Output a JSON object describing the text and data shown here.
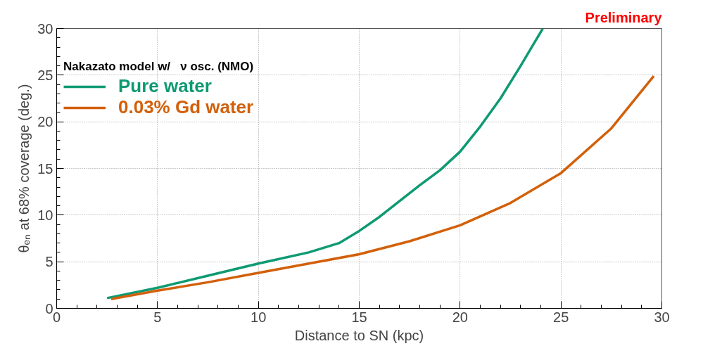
{
  "chart_data": {
    "type": "line",
    "xlabel": "Distance to SN (kpc)",
    "ylabel": "θₑₙ at 68% coverage (deg.)",
    "legend_title": "Nakazato model w/   ν osc. (NMO)",
    "annotations": [
      "Preliminary"
    ],
    "xlim": [
      0,
      30
    ],
    "ylim": [
      0,
      30
    ],
    "xticks": [
      0,
      5,
      10,
      15,
      20,
      25,
      30
    ],
    "yticks": [
      0,
      5,
      10,
      15,
      20,
      25,
      30
    ],
    "grid": true,
    "legend": "top left",
    "line_style": "solid",
    "marker": "none",
    "series": [
      {
        "name": "Pure water",
        "color": "#0e9a72",
        "x": [
          2.5,
          5,
          7.5,
          10,
          12.5,
          14,
          15,
          16,
          17,
          18,
          19,
          20,
          21,
          22,
          23,
          24.1
        ],
        "values": [
          1.1,
          2.2,
          3.5,
          4.8,
          6.0,
          7.0,
          8.3,
          9.8,
          11.5,
          13.2,
          14.8,
          16.8,
          19.5,
          22.5,
          26,
          30
        ]
      },
      {
        "name": "0.03% Gd water",
        "color": "#d2600a",
        "x": [
          2.7,
          5,
          7.5,
          10,
          12.5,
          15,
          17.5,
          20,
          22.5,
          25,
          27.5,
          29.6
        ],
        "values": [
          1.0,
          1.9,
          2.8,
          3.8,
          4.8,
          5.8,
          7.2,
          8.9,
          11.3,
          14.5,
          19.3,
          24.9
        ]
      }
    ]
  }
}
